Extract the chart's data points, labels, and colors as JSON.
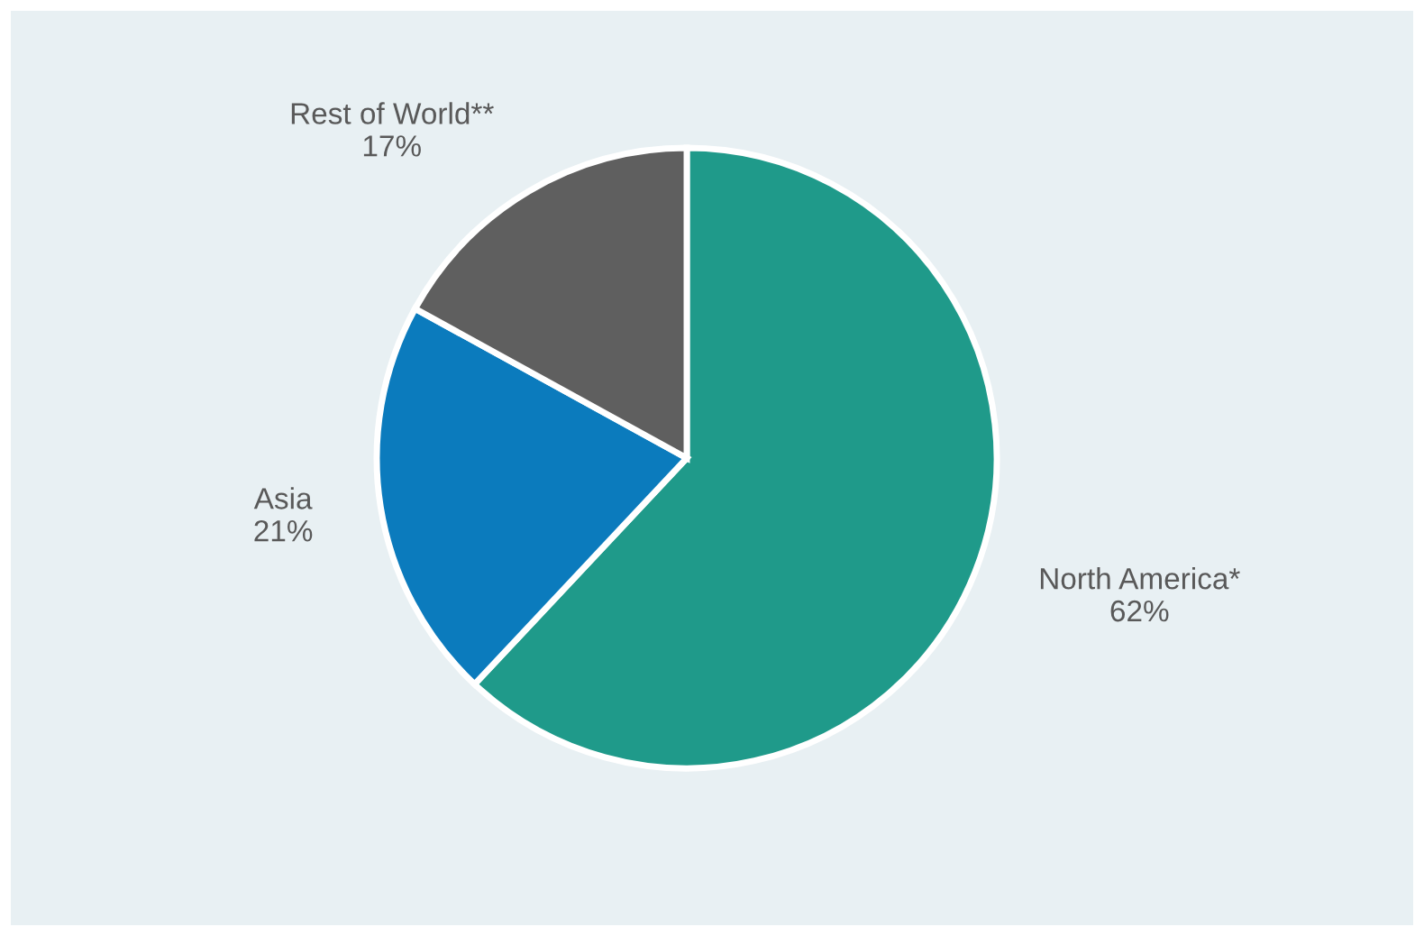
{
  "chart_data": {
    "type": "pie",
    "categories": [
      "North America*",
      "Asia",
      "Rest of World**"
    ],
    "values": [
      62,
      21,
      17
    ],
    "value_labels": [
      "62%",
      "21%",
      "17%"
    ],
    "colors": [
      "#1f9a8a",
      "#0b7bbd",
      "#5f5f5f"
    ]
  }
}
